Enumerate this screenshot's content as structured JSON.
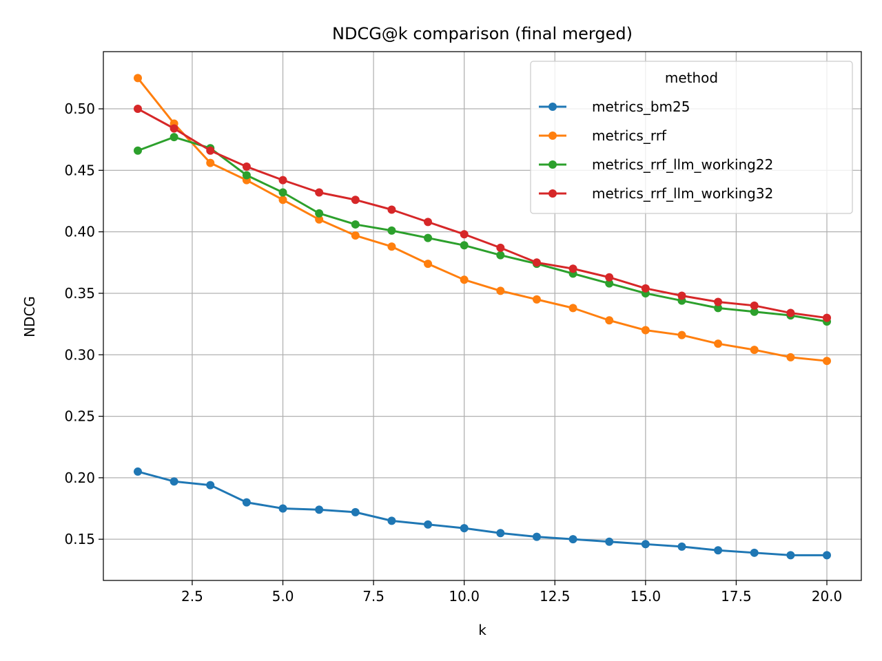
{
  "chart_data": {
    "type": "line",
    "title": "NDCG@k comparison (final merged)",
    "xlabel": "k",
    "ylabel": "NDCG",
    "xlim": [
      0.05,
      20.95
    ],
    "ylim": [
      0.1165,
      0.5465
    ],
    "xticks": [
      2.5,
      5.0,
      7.5,
      10.0,
      12.5,
      15.0,
      17.5,
      20.0
    ],
    "xtick_labels": [
      "2.5",
      "5.0",
      "7.5",
      "10.0",
      "12.5",
      "15.0",
      "17.5",
      "20.0"
    ],
    "yticks": [
      0.15,
      0.2,
      0.25,
      0.3,
      0.35,
      0.4,
      0.45,
      0.5
    ],
    "ytick_labels": [
      "0.15",
      "0.20",
      "0.25",
      "0.30",
      "0.35",
      "0.40",
      "0.45",
      "0.50"
    ],
    "grid": true,
    "legend": {
      "title": "method",
      "placement": "top-right"
    },
    "x": [
      1,
      2,
      3,
      4,
      5,
      6,
      7,
      8,
      9,
      10,
      11,
      12,
      13,
      14,
      15,
      16,
      17,
      18,
      19,
      20
    ],
    "series": [
      {
        "name": "metrics_bm25",
        "color": "#1f77b4",
        "values": [
          0.205,
          0.197,
          0.194,
          0.18,
          0.175,
          0.174,
          0.172,
          0.165,
          0.162,
          0.159,
          0.155,
          0.152,
          0.15,
          0.148,
          0.146,
          0.144,
          0.141,
          0.139,
          0.137,
          0.137
        ]
      },
      {
        "name": "metrics_rrf",
        "color": "#ff7f0e",
        "values": [
          0.525,
          0.488,
          0.456,
          0.442,
          0.426,
          0.41,
          0.397,
          0.388,
          0.374,
          0.361,
          0.352,
          0.345,
          0.338,
          0.328,
          0.32,
          0.316,
          0.309,
          0.304,
          0.298,
          0.295
        ]
      },
      {
        "name": "metrics_rrf_llm_working22",
        "color": "#2ca02c",
        "values": [
          0.466,
          0.477,
          0.468,
          0.446,
          0.432,
          0.415,
          0.406,
          0.401,
          0.395,
          0.389,
          0.381,
          0.374,
          0.366,
          0.358,
          0.35,
          0.344,
          0.338,
          0.335,
          0.332,
          0.327
        ]
      },
      {
        "name": "metrics_rrf_llm_working32",
        "color": "#d62728",
        "values": [
          0.5,
          0.484,
          0.466,
          0.453,
          0.442,
          0.432,
          0.426,
          0.418,
          0.408,
          0.398,
          0.387,
          0.375,
          0.37,
          0.363,
          0.354,
          0.348,
          0.343,
          0.34,
          0.334,
          0.33
        ]
      }
    ]
  }
}
